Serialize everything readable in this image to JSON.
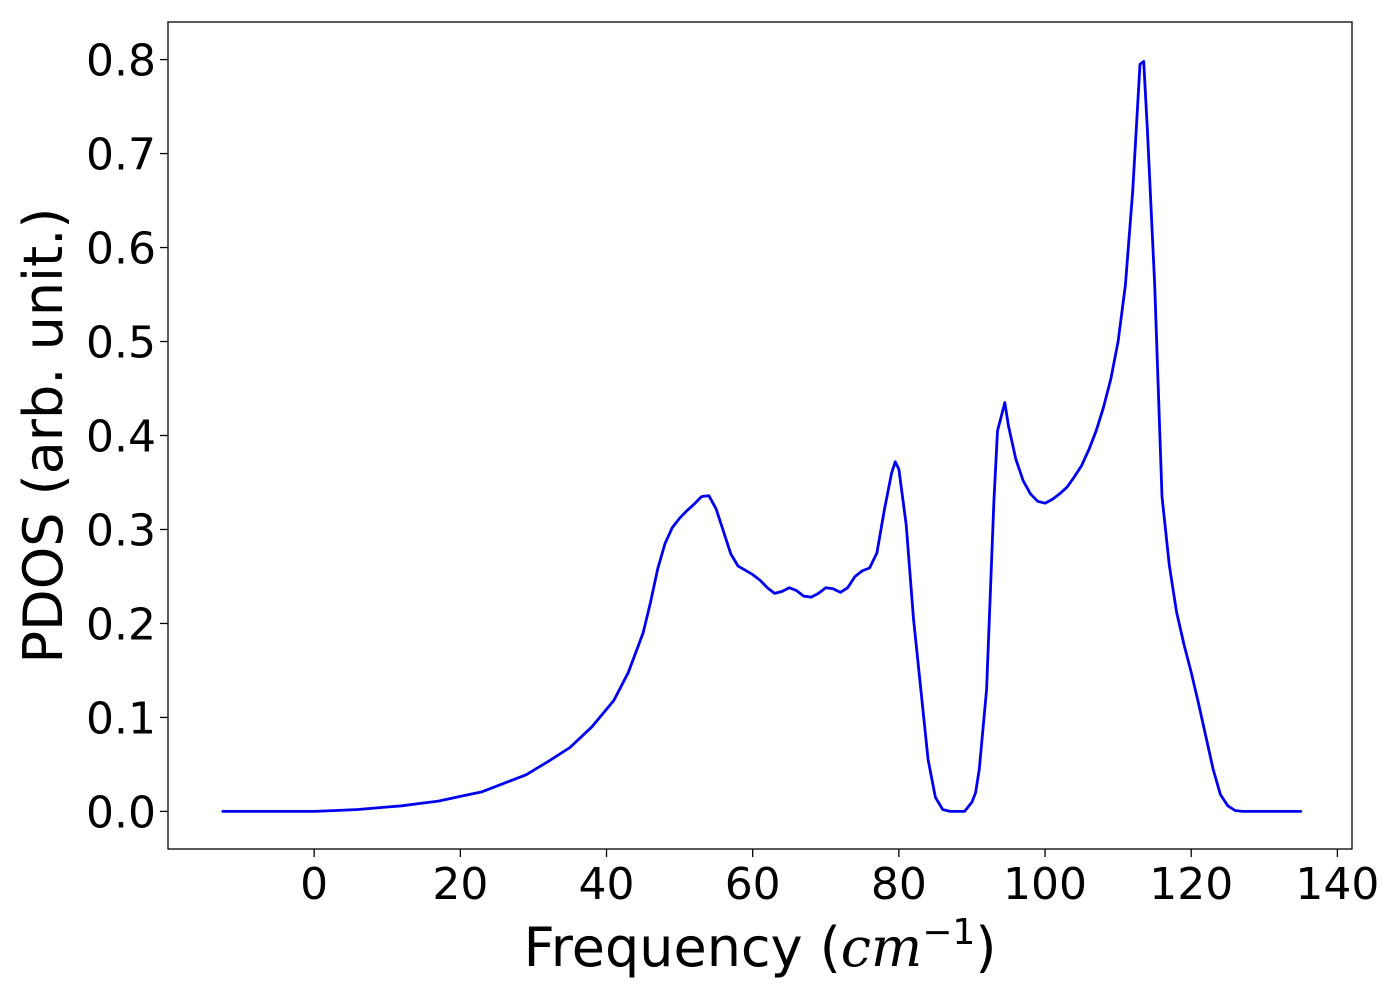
{
  "chart_data": {
    "type": "line",
    "title": "",
    "xlabel": {
      "text": "Frequency (",
      "math": "cm",
      "superscript": "−1",
      "close": ")"
    },
    "ylabel": "PDOS (arb. unit.)",
    "xlim": [
      -20,
      142
    ],
    "ylim": [
      -0.04,
      0.84
    ],
    "xticks": [
      0,
      20,
      40,
      60,
      80,
      100,
      120,
      140
    ],
    "xtick_labels": [
      "0",
      "20",
      "40",
      "60",
      "80",
      "100",
      "120",
      "140"
    ],
    "yticks": [
      0.0,
      0.1,
      0.2,
      0.3,
      0.4,
      0.5,
      0.6,
      0.7,
      0.8
    ],
    "ytick_labels": [
      "0.0",
      "0.1",
      "0.2",
      "0.3",
      "0.4",
      "0.5",
      "0.6",
      "0.7",
      "0.8"
    ],
    "grid": false,
    "legend": "none",
    "series": [
      {
        "color": "#0000ee",
        "x": [
          -12.5,
          -5,
          0,
          3,
          6,
          9,
          12,
          14,
          17,
          20,
          23,
          26,
          29,
          32,
          35,
          38,
          41,
          43,
          45,
          46,
          47,
          48,
          49,
          50,
          51,
          52,
          53,
          54,
          55,
          56,
          57,
          58,
          60,
          61,
          62,
          63,
          64,
          65,
          66,
          67,
          68,
          69,
          70,
          71,
          72,
          73,
          74,
          75,
          76,
          77,
          78,
          79,
          79.5,
          80,
          81,
          82,
          83,
          84,
          85,
          86,
          87,
          88,
          89,
          90,
          90.5,
          91,
          92,
          93,
          93.5,
          94,
          94.5,
          95,
          96,
          97,
          98,
          99,
          100,
          101,
          102,
          103,
          104,
          105,
          106,
          107,
          108,
          109,
          110,
          111,
          112,
          113,
          113.5,
          114,
          115,
          116,
          117,
          118,
          119,
          120,
          121,
          122,
          123,
          124,
          125,
          126,
          127,
          130,
          135
        ],
        "y": [
          0.0,
          0.0,
          0.0,
          0.001,
          0.002,
          0.004,
          0.006,
          0.008,
          0.011,
          0.016,
          0.021,
          0.03,
          0.039,
          0.053,
          0.068,
          0.09,
          0.118,
          0.148,
          0.19,
          0.222,
          0.258,
          0.285,
          0.302,
          0.312,
          0.32,
          0.327,
          0.335,
          0.336,
          0.322,
          0.298,
          0.274,
          0.261,
          0.252,
          0.246,
          0.238,
          0.232,
          0.234,
          0.238,
          0.235,
          0.229,
          0.228,
          0.232,
          0.238,
          0.237,
          0.233,
          0.238,
          0.25,
          0.256,
          0.259,
          0.275,
          0.32,
          0.36,
          0.372,
          0.364,
          0.305,
          0.205,
          0.13,
          0.055,
          0.015,
          0.002,
          0.0,
          0.0,
          0.0,
          0.01,
          0.02,
          0.045,
          0.13,
          0.33,
          0.405,
          0.42,
          0.435,
          0.41,
          0.375,
          0.352,
          0.338,
          0.33,
          0.328,
          0.332,
          0.338,
          0.345,
          0.356,
          0.368,
          0.385,
          0.405,
          0.43,
          0.46,
          0.5,
          0.56,
          0.66,
          0.795,
          0.798,
          0.725,
          0.56,
          0.335,
          0.262,
          0.212,
          0.178,
          0.148,
          0.115,
          0.08,
          0.045,
          0.018,
          0.006,
          0.001,
          0.0,
          0.0,
          0.0
        ]
      }
    ]
  }
}
